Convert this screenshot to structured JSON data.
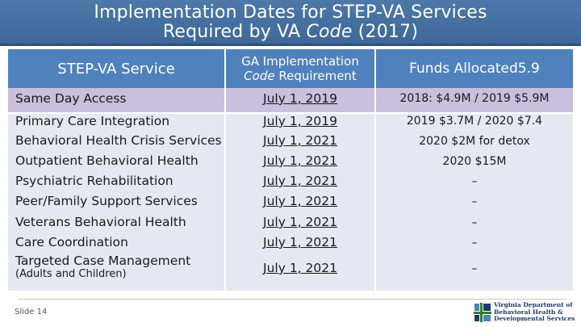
{
  "title": {
    "line1": "Implementation Dates for STEP-VA Services",
    "line2_prefix": "Required by VA ",
    "line2_italic": "Code",
    "line2_suffix": " (2017)"
  },
  "table": {
    "headers": {
      "service": "STEP-VA Service",
      "ga_line1": "GA Implementation",
      "ga_line2_italic": "Code",
      "ga_line2_rest": " Requirement",
      "funds": "Funds Allocated5.9"
    },
    "rows": [
      {
        "service": "Same Day Access",
        "date": "July 1, 2019",
        "funds": "2018: $4.9M / 2019 $5.9M"
      },
      {
        "service": "Primary Care Integration",
        "date": "July 1, 2019",
        "funds": "2019 $3.7M / 2020 $7.4"
      },
      {
        "service": "Behavioral Health Crisis Services",
        "date": "July 1, 2021",
        "funds": "2020 $2M for detox"
      },
      {
        "service": "Outpatient Behavioral Health",
        "date": "July 1, 2021",
        "funds": "2020 $15M"
      },
      {
        "service": "Psychiatric Rehabilitation",
        "date": "July 1, 2021",
        "funds": "–"
      },
      {
        "service": "Peer/Family Support Services",
        "date": "July 1, 2021",
        "funds": "–"
      },
      {
        "service": "Veterans Behavioral Health",
        "date": "July 1, 2021",
        "funds": "–"
      },
      {
        "service": "Care Coordination",
        "date": "July 1, 2021",
        "funds": "–"
      },
      {
        "service": "Targeted Case Management",
        "service_sub": "(Adults and Children)",
        "date": "July 1, 2021",
        "funds": "–"
      }
    ]
  },
  "footer": {
    "slide_label": "Slide 14",
    "logo_line1": "Virginia Department of",
    "logo_line2": "Behavioral Health &",
    "logo_line3": "Developmental Services"
  },
  "colors": {
    "title_bg": "#4d78a8",
    "header_bg": "#4f81bd",
    "highlight_row": "#c9c0dd",
    "body_bg": "#e6e8f1"
  }
}
